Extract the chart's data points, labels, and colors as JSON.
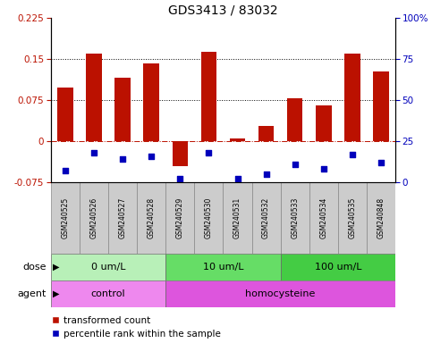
{
  "title": "GDS3413 / 83032",
  "samples": [
    "GSM240525",
    "GSM240526",
    "GSM240527",
    "GSM240528",
    "GSM240529",
    "GSM240530",
    "GSM240531",
    "GSM240532",
    "GSM240533",
    "GSM240534",
    "GSM240535",
    "GSM240848"
  ],
  "red_values": [
    0.098,
    0.16,
    0.115,
    0.142,
    -0.045,
    0.163,
    0.005,
    0.028,
    0.078,
    0.065,
    0.16,
    0.127
  ],
  "blue_pct": [
    7,
    18,
    14,
    16,
    2,
    18,
    2,
    5,
    11,
    8,
    17,
    12
  ],
  "dose_groups": [
    {
      "label": "0 um/L",
      "start": 0,
      "end": 4,
      "color": "#b8f0b8"
    },
    {
      "label": "10 um/L",
      "start": 4,
      "end": 8,
      "color": "#66dd66"
    },
    {
      "label": "100 um/L",
      "start": 8,
      "end": 12,
      "color": "#44cc44"
    }
  ],
  "agent_groups": [
    {
      "label": "control",
      "start": 0,
      "end": 4,
      "color": "#ee88ee"
    },
    {
      "label": "homocysteine",
      "start": 4,
      "end": 12,
      "color": "#dd55dd"
    }
  ],
  "ylim_left": [
    -0.075,
    0.225
  ],
  "ylim_right": [
    0,
    100
  ],
  "yticks_left": [
    -0.075,
    0,
    0.075,
    0.15,
    0.225
  ],
  "yticks_right": [
    0,
    25,
    50,
    75,
    100
  ],
  "hlines": [
    0.075,
    0.15
  ],
  "red_color": "#bb1100",
  "blue_color": "#0000bb",
  "sample_bg": "#cccccc",
  "legend_labels": [
    "transformed count",
    "percentile rank within the sample"
  ]
}
